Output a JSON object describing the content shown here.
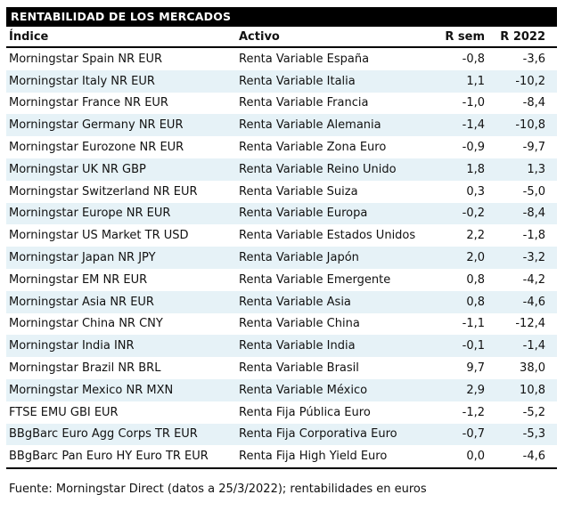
{
  "report": {
    "title": "RENTABILIDAD DE LOS MERCADOS",
    "source_note": "Fuente: Morningstar Direct (datos a 25/3/2022); rentabilidades en euros"
  },
  "colors": {
    "title_bar_bg": "#000000",
    "title_text": "#ffffff",
    "stripe_bg": "#e6f2f7",
    "body_text": "#111111"
  },
  "table": {
    "columns": [
      "Índice",
      "Activo",
      "R sem",
      "R 2022"
    ],
    "rows": [
      {
        "indice": "Morningstar Spain NR EUR",
        "activo": "Renta Variable España",
        "r_sem": "-0,8",
        "r_2022": "-3,6"
      },
      {
        "indice": "Morningstar Italy NR EUR",
        "activo": "Renta Variable Italia",
        "r_sem": "1,1",
        "r_2022": "-10,2"
      },
      {
        "indice": "Morningstar France NR EUR",
        "activo": "Renta Variable Francia",
        "r_sem": "-1,0",
        "r_2022": "-8,4"
      },
      {
        "indice": "Morningstar Germany NR EUR",
        "activo": "Renta Variable Alemania",
        "r_sem": "-1,4",
        "r_2022": "-10,8"
      },
      {
        "indice": "Morningstar Eurozone NR EUR",
        "activo": "Renta Variable Zona Euro",
        "r_sem": "-0,9",
        "r_2022": "-9,7"
      },
      {
        "indice": "Morningstar UK NR GBP",
        "activo": "Renta Variable Reino Unido",
        "r_sem": "1,8",
        "r_2022": "1,3"
      },
      {
        "indice": "Morningstar Switzerland NR EUR",
        "activo": "Renta Variable Suiza",
        "r_sem": "0,3",
        "r_2022": "-5,0"
      },
      {
        "indice": "Morningstar Europe NR EUR",
        "activo": "Renta Variable Europa",
        "r_sem": "-0,2",
        "r_2022": "-8,4"
      },
      {
        "indice": "Morningstar US Market TR USD",
        "activo": "Renta Variable Estados Unidos",
        "r_sem": "2,2",
        "r_2022": "-1,8"
      },
      {
        "indice": "Morningstar Japan NR JPY",
        "activo": "Renta Variable Japón",
        "r_sem": "2,0",
        "r_2022": "-3,2"
      },
      {
        "indice": "Morningstar EM NR EUR",
        "activo": "Renta Variable Emergente",
        "r_sem": "0,8",
        "r_2022": "-4,2"
      },
      {
        "indice": "Morningstar Asia NR EUR",
        "activo": "Renta Variable Asia",
        "r_sem": "0,8",
        "r_2022": "-4,6"
      },
      {
        "indice": "Morningstar China NR CNY",
        "activo": "Renta Variable China",
        "r_sem": "-1,1",
        "r_2022": "-12,4"
      },
      {
        "indice": "Morningstar India INR",
        "activo": "Renta Variable India",
        "r_sem": "-0,1",
        "r_2022": "-1,4"
      },
      {
        "indice": "Morningstar Brazil NR BRL",
        "activo": "Renta Variable Brasil",
        "r_sem": "9,7",
        "r_2022": "38,0"
      },
      {
        "indice": "Morningstar Mexico NR MXN",
        "activo": "Renta Variable México",
        "r_sem": "2,9",
        "r_2022": "10,8"
      },
      {
        "indice": "FTSE EMU GBI EUR",
        "activo": "Renta Fija Pública Euro",
        "r_sem": "-1,2",
        "r_2022": "-5,2"
      },
      {
        "indice": "BBgBarc Euro Agg Corps TR EUR",
        "activo": "Renta Fija Corporativa Euro",
        "r_sem": "-0,7",
        "r_2022": "-5,3"
      },
      {
        "indice": "BBgBarc Pan Euro HY Euro TR EUR",
        "activo": "Renta Fija High Yield Euro",
        "r_sem": "0,0",
        "r_2022": "-4,6"
      }
    ]
  }
}
